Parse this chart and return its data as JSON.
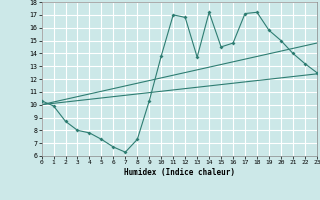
{
  "xlabel": "Humidex (Indice chaleur)",
  "xlim": [
    0,
    23
  ],
  "ylim": [
    6,
    18
  ],
  "xticks": [
    0,
    1,
    2,
    3,
    4,
    5,
    6,
    7,
    8,
    9,
    10,
    11,
    12,
    13,
    14,
    15,
    16,
    17,
    18,
    19,
    20,
    21,
    22,
    23
  ],
  "yticks": [
    6,
    7,
    8,
    9,
    10,
    11,
    12,
    13,
    14,
    15,
    16,
    17,
    18
  ],
  "bg_color": "#cce8e8",
  "grid_color": "#ffffff",
  "line_color": "#2e7d72",
  "line1_x": [
    0,
    1,
    2,
    3,
    4,
    5,
    6,
    7,
    8,
    9,
    10,
    11,
    12,
    13,
    14,
    15,
    16,
    17,
    18,
    19,
    20,
    21,
    22,
    23
  ],
  "line1_y": [
    10.3,
    9.9,
    8.7,
    8.0,
    7.8,
    7.3,
    6.7,
    6.3,
    7.3,
    10.3,
    13.8,
    17.0,
    16.8,
    13.7,
    17.2,
    14.5,
    14.8,
    17.1,
    17.2,
    15.8,
    15.0,
    14.0,
    13.2,
    12.5
  ],
  "line2_x": [
    0,
    23
  ],
  "line2_y": [
    10.0,
    12.4
  ],
  "line3_x": [
    0,
    23
  ],
  "line3_y": [
    10.0,
    14.8
  ]
}
